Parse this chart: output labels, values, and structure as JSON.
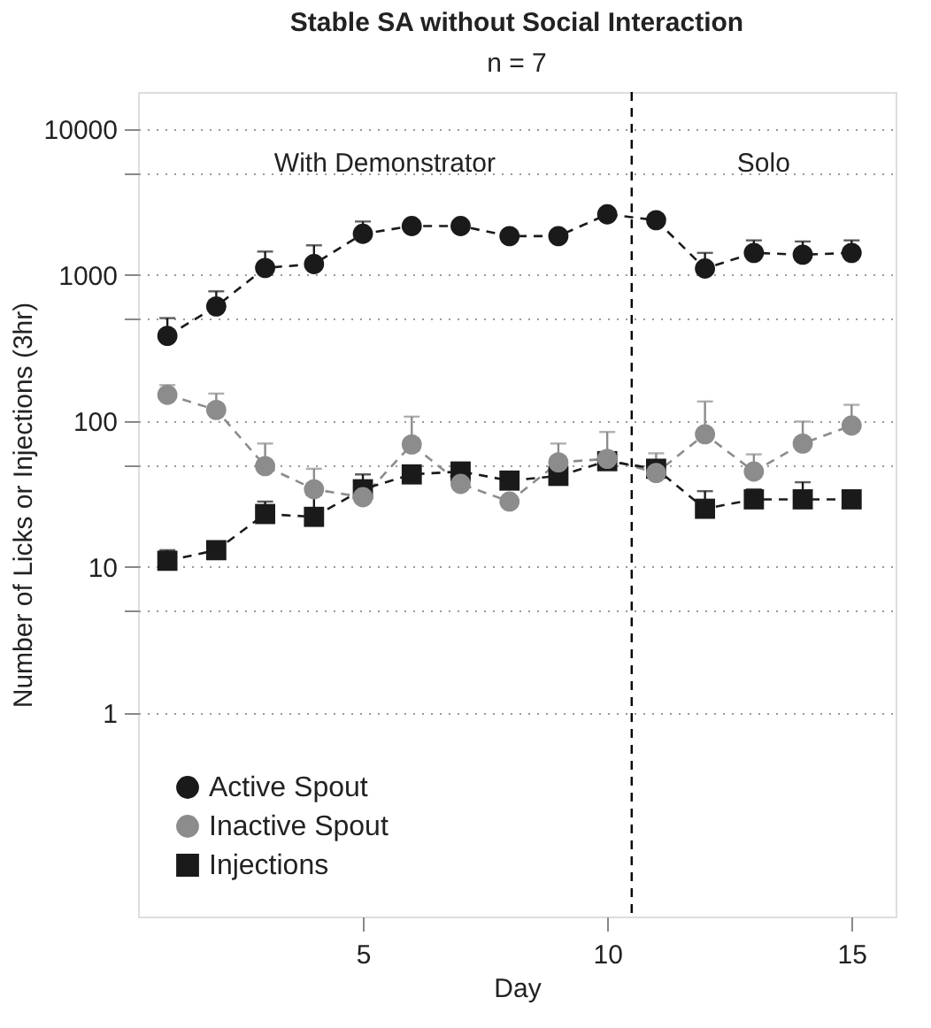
{
  "chart_data": {
    "type": "line",
    "title": "Stable SA without Social Interaction",
    "subtitle": "n = 7",
    "xlabel": "Day",
    "ylabel": "Number of Licks or Injections (3hr)",
    "x": [
      1,
      2,
      3,
      4,
      5,
      6,
      7,
      8,
      9,
      10,
      11,
      12,
      13,
      14,
      15
    ],
    "series": [
      {
        "name": "Active Spout",
        "color": "#1a1a1a",
        "marker": "circle",
        "values": [
          383,
          610,
          1120,
          1190,
          1920,
          2170,
          2170,
          1850,
          1850,
          2610,
          2380,
          1110,
          1420,
          1380,
          1420
        ],
        "errors": [
          [
            383,
            507
          ],
          [
            610,
            774
          ],
          [
            1120,
            1450
          ],
          [
            1190,
            1600
          ],
          [
            1920,
            2330
          ],
          null,
          null,
          null,
          null,
          null,
          null,
          [
            1110,
            1420
          ],
          [
            1420,
            1730
          ],
          [
            1380,
            1700
          ],
          [
            1420,
            1730
          ]
        ]
      },
      {
        "name": "Inactive Spout",
        "color": "#8c8c8c",
        "marker": "circle",
        "values": [
          151,
          119,
          49,
          34,
          30,
          69,
          37,
          28,
          52,
          55,
          44,
          81,
          45,
          70,
          93
        ],
        "errors": [
          [
            151,
            176
          ],
          [
            119,
            154
          ],
          [
            49,
            70
          ],
          [
            34,
            47
          ],
          null,
          [
            69,
            107
          ],
          null,
          null,
          [
            52,
            70
          ],
          [
            55,
            84
          ],
          [
            44,
            60
          ],
          [
            81,
            136
          ],
          [
            45,
            59
          ],
          [
            70,
            99
          ],
          [
            93,
            129
          ]
        ]
      },
      {
        "name": "Injections",
        "color": "#1a1a1a",
        "marker": "square",
        "values": [
          11,
          13,
          23,
          22,
          34,
          43,
          45,
          39,
          42,
          53,
          47,
          25,
          29,
          29,
          29
        ],
        "errors": [
          [
            11,
            13
          ],
          null,
          [
            23,
            28
          ],
          [
            22,
            31
          ],
          [
            34,
            43
          ],
          null,
          null,
          null,
          null,
          null,
          null,
          [
            25,
            33
          ],
          [
            29,
            34
          ],
          [
            29,
            38
          ],
          null
        ]
      }
    ],
    "log": "y",
    "xlim": [
      0.4,
      15.9
    ],
    "xticks": [
      5,
      10,
      15
    ],
    "ylim": [
      0.04,
      18000
    ],
    "yticks": [
      1,
      {
        "value": 5,
        "label": null
      },
      10,
      {
        "value": 50,
        "label": null
      },
      100,
      {
        "value": 500,
        "label": null
      },
      1000,
      {
        "value": 5000,
        "label": null
      },
      10000
    ],
    "grid": "y",
    "line_style": "dashed",
    "legend": "bottom left",
    "ref_lines": [
      {
        "axis": "x",
        "value": 10.5,
        "line_style": "dashed",
        "color": "#000000"
      }
    ],
    "annotations": [
      "With Demonstrator",
      "Solo"
    ]
  }
}
